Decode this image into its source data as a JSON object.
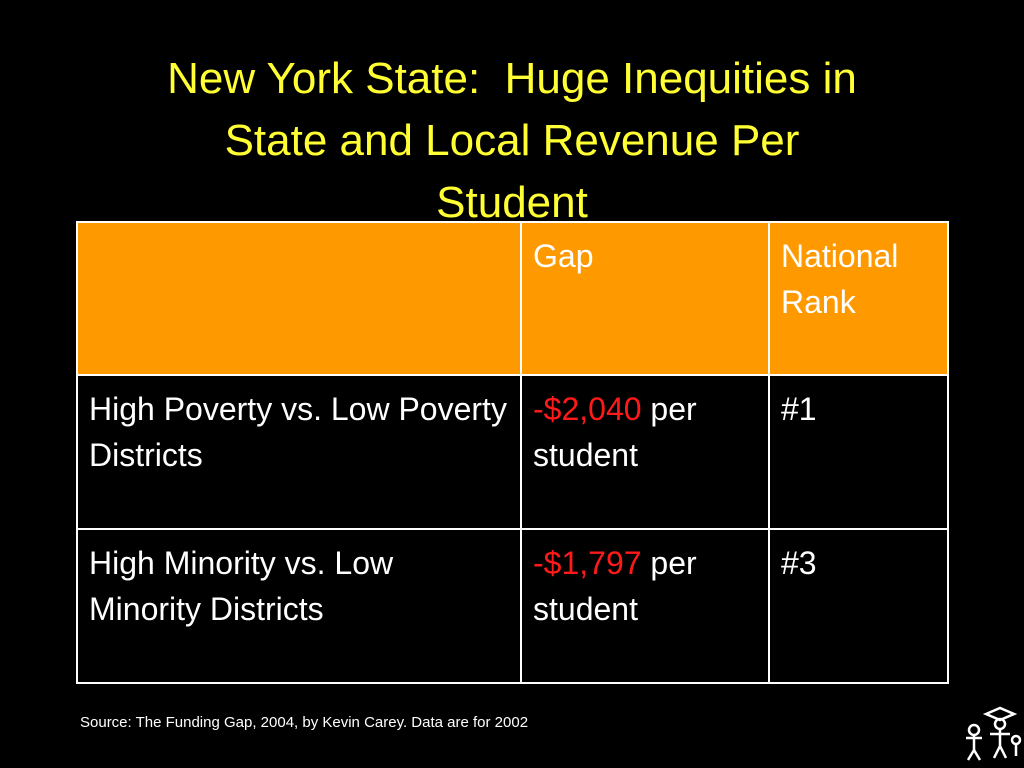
{
  "title_lines": [
    "New York State:  Huge Inequities in",
    "State and Local Revenue Per",
    "Student"
  ],
  "table": {
    "header": {
      "gap": "Gap",
      "rank": "National Rank"
    },
    "rows": [
      {
        "label": "High Poverty vs. Low Poverty Districts",
        "gap_amount": "-$2,040",
        "gap_unit": "per student",
        "rank": "#1"
      },
      {
        "label": "High Minority vs. Low Minority Districts",
        "gap_amount": "-$1,797",
        "gap_unit": "per student",
        "rank": "#3"
      }
    ]
  },
  "source": "Source:  The Funding Gap, 2004, by Kevin Carey.  Data are for 2002"
}
